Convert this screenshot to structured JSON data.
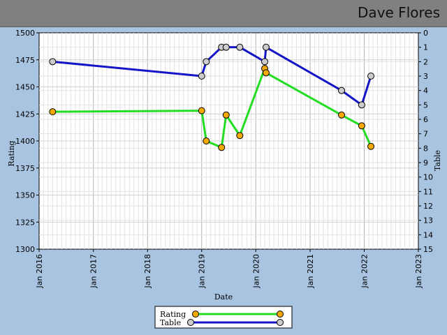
{
  "header": {
    "player_name": "Dave Flores"
  },
  "colors": {
    "rating": "#22dd22",
    "table": "#1515c8",
    "rating_marker": "#f5a800",
    "table_marker": "#cccccc",
    "background": "#a8c4e0",
    "titlebar": "#808080"
  },
  "chart_data": {
    "type": "line",
    "xlabel": "Date",
    "ylabel": "Rating",
    "y2label": "Table",
    "xlim": [
      "2016-01-01",
      "2023-01-01"
    ],
    "x_ticks": [
      "Jan 2016",
      "Jan 2017",
      "Jan 2018",
      "Jan 2019",
      "Jan 2020",
      "Jan 2021",
      "Jan 2022",
      "Jan 2023"
    ],
    "ylim": [
      1300,
      1500
    ],
    "y_ticks": [
      1300,
      1325,
      1350,
      1375,
      1400,
      1425,
      1450,
      1475,
      1500
    ],
    "y2lim": [
      15,
      0
    ],
    "y2_ticks": [
      0,
      1,
      2,
      3,
      4,
      5,
      6,
      7,
      8,
      9,
      10,
      11,
      12,
      13,
      14,
      15
    ],
    "grid": true,
    "legend": {
      "position": "bottom-center",
      "entries": [
        "Rating",
        "Table"
      ]
    },
    "series": [
      {
        "name": "Rating",
        "axis": "left",
        "x": [
          "2016-04-01",
          "2019-01-01",
          "2019-02-01",
          "2019-05-15",
          "2019-06-15",
          "2019-09-15",
          "2020-03-01",
          "2020-03-10",
          "2021-08-01",
          "2021-12-15",
          "2022-02-15"
        ],
        "values": [
          1427,
          1428,
          1400,
          1394,
          1424,
          1405,
          1467,
          1463,
          1424,
          1414,
          1395
        ]
      },
      {
        "name": "Table",
        "axis": "right",
        "x": [
          "2016-04-01",
          "2019-01-01",
          "2019-02-01",
          "2019-05-15",
          "2019-06-15",
          "2019-09-15",
          "2020-03-01",
          "2020-03-10",
          "2021-08-01",
          "2021-12-15",
          "2022-02-15"
        ],
        "values": [
          2,
          3,
          2,
          1,
          1,
          1,
          2,
          1,
          4,
          5,
          3
        ]
      }
    ]
  }
}
